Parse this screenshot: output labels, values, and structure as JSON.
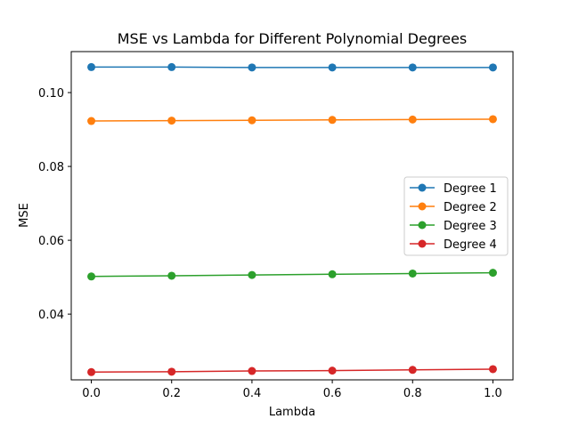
{
  "chart_data": {
    "type": "line",
    "title": "MSE vs Lambda for Different Polynomial Degrees",
    "xlabel": "Lambda",
    "ylabel": "MSE",
    "x": [
      0.0,
      0.2,
      0.4,
      0.6,
      0.8,
      1.0
    ],
    "x_ticks": [
      "0.0",
      "0.2",
      "0.4",
      "0.6",
      "0.8",
      "1.0"
    ],
    "y_ticks": [
      "0.04",
      "0.06",
      "0.08",
      "0.10"
    ],
    "xlim": [
      -0.05,
      1.05
    ],
    "ylim": [
      0.0222,
      0.1111
    ],
    "grid": false,
    "legend_position": "center-right",
    "series": [
      {
        "name": "Degree 1",
        "color": "#1f77b4",
        "values": [
          0.1069,
          0.1069,
          0.1068,
          0.1068,
          0.1068,
          0.1068
        ]
      },
      {
        "name": "Degree 2",
        "color": "#ff7f0e",
        "values": [
          0.0923,
          0.0924,
          0.0925,
          0.0926,
          0.0927,
          0.0928
        ]
      },
      {
        "name": "Degree 3",
        "color": "#2ca02c",
        "values": [
          0.0502,
          0.0504,
          0.0506,
          0.0508,
          0.051,
          0.0512
        ]
      },
      {
        "name": "Degree 4",
        "color": "#d62728",
        "values": [
          0.0243,
          0.0244,
          0.0246,
          0.0247,
          0.0249,
          0.0251
        ]
      }
    ]
  }
}
